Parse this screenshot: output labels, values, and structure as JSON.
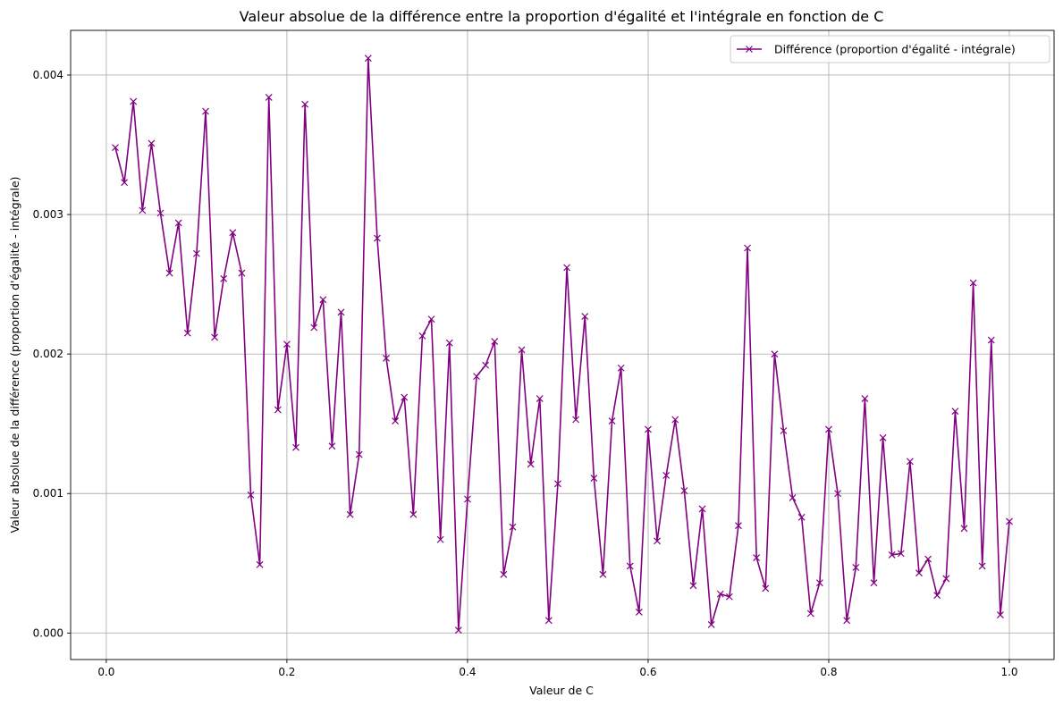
{
  "chart_data": {
    "type": "line",
    "title": "Valeur absolue de la différence entre la proportion d'égalité et l'intégrale en fonction de C",
    "xlabel": "Valeur de C",
    "ylabel": "Valeur absolue de la différence (proportion d'égalité - intégrale)",
    "xlim": [
      -0.0395,
      1.0495
    ],
    "ylim": [
      -0.00019,
      0.00432
    ],
    "xticks": [
      0.0,
      0.2,
      0.4,
      0.6,
      0.8,
      1.0
    ],
    "xtick_labels": [
      "0.0",
      "0.2",
      "0.4",
      "0.6",
      "0.8",
      "1.0"
    ],
    "yticks": [
      0.0,
      0.001,
      0.002,
      0.003,
      0.004
    ],
    "ytick_labels": [
      "0.000",
      "0.001",
      "0.002",
      "0.003",
      "0.004"
    ],
    "grid": true,
    "legend_position": "top-right",
    "series": [
      {
        "name": "Différence (proportion d'égalité - intégrale)",
        "color": "#800080",
        "marker": "x",
        "x": [
          0.01,
          0.02,
          0.03,
          0.04,
          0.05,
          0.06,
          0.07,
          0.08,
          0.09,
          0.1,
          0.11,
          0.12,
          0.13,
          0.14,
          0.15,
          0.16,
          0.17,
          0.18,
          0.19,
          0.2,
          0.21,
          0.22,
          0.23,
          0.24,
          0.25,
          0.26,
          0.27,
          0.28,
          0.29,
          0.3,
          0.31,
          0.32,
          0.33,
          0.34,
          0.35,
          0.36,
          0.37,
          0.38,
          0.39,
          0.4,
          0.41,
          0.42,
          0.43,
          0.44,
          0.45,
          0.46,
          0.47,
          0.48,
          0.49,
          0.5,
          0.51,
          0.52,
          0.53,
          0.54,
          0.55,
          0.56,
          0.57,
          0.58,
          0.59,
          0.6,
          0.61,
          0.62,
          0.63,
          0.64,
          0.65,
          0.66,
          0.67,
          0.68,
          0.69,
          0.7,
          0.71,
          0.72,
          0.73,
          0.74,
          0.75,
          0.76,
          0.77,
          0.78,
          0.79,
          0.8,
          0.81,
          0.82,
          0.83,
          0.84,
          0.85,
          0.86,
          0.87,
          0.88,
          0.89,
          0.9,
          0.91,
          0.92,
          0.93,
          0.94,
          0.95,
          0.96,
          0.97,
          0.98,
          0.99,
          1.0
        ],
        "y": [
          0.00348,
          0.00323,
          0.00381,
          0.00303,
          0.00351,
          0.00301,
          0.00258,
          0.00294,
          0.00215,
          0.00272,
          0.00374,
          0.00212,
          0.00254,
          0.00287,
          0.00258,
          0.00099,
          0.00049,
          0.00384,
          0.0016,
          0.00207,
          0.00133,
          0.00379,
          0.00219,
          0.00239,
          0.00134,
          0.0023,
          0.00085,
          0.00128,
          0.00412,
          0.00283,
          0.00197,
          0.00152,
          0.00169,
          0.00085,
          0.00213,
          0.00225,
          0.00067,
          0.00208,
          2e-05,
          0.00096,
          0.00184,
          0.00192,
          0.00209,
          0.00042,
          0.00076,
          0.00203,
          0.00121,
          0.00168,
          9e-05,
          0.00107,
          0.00262,
          0.00153,
          0.00227,
          0.00111,
          0.00042,
          0.00152,
          0.0019,
          0.00048,
          0.00015,
          0.00146,
          0.00066,
          0.00113,
          0.00153,
          0.00102,
          0.00034,
          0.00089,
          6e-05,
          0.00028,
          0.00026,
          0.00077,
          0.00276,
          0.00054,
          0.00032,
          0.002,
          0.00145,
          0.00097,
          0.00083,
          0.00014,
          0.00036,
          0.00146,
          0.001,
          9e-05,
          0.00047,
          0.00168,
          0.00036,
          0.0014,
          0.00056,
          0.00057,
          0.00123,
          0.00043,
          0.00053,
          0.00027,
          0.00039,
          0.00159,
          0.00075,
          0.00251,
          0.00048,
          0.0021,
          0.00013,
          0.0008
        ]
      }
    ]
  }
}
